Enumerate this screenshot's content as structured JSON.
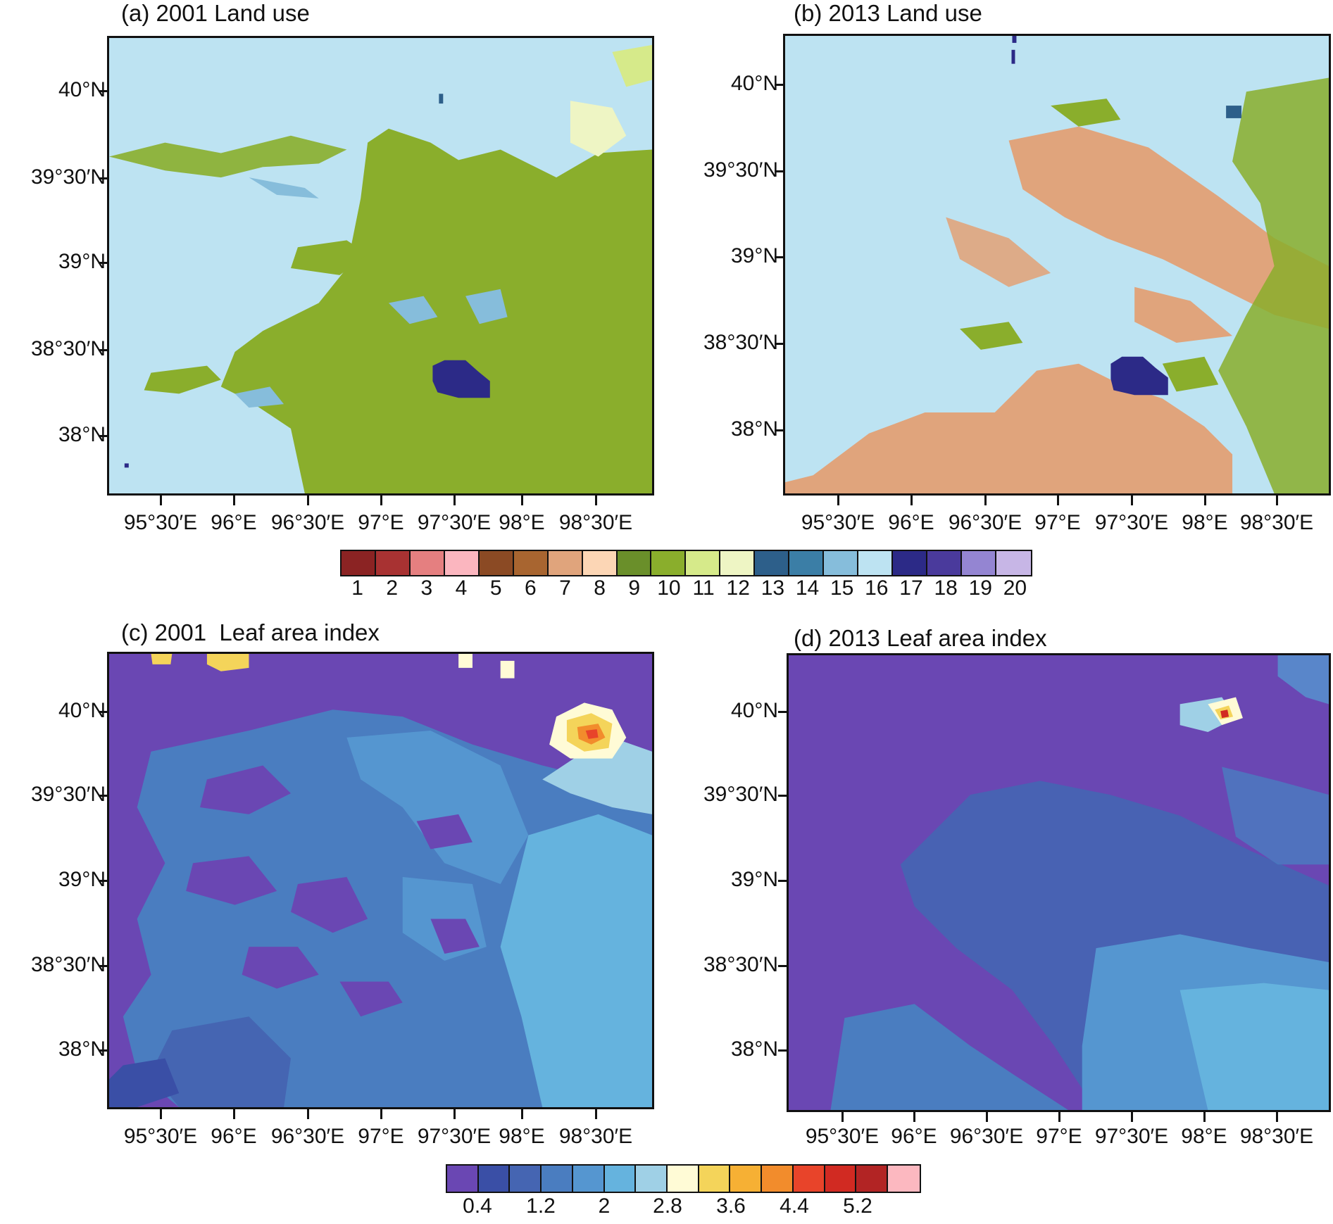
{
  "panels": [
    {
      "id": "a",
      "title": "(a) 2001 Land use"
    },
    {
      "id": "b",
      "title": "(b) 2013 Land use"
    },
    {
      "id": "c",
      "title": "(c) 2001  Leaf area index"
    },
    {
      "id": "d",
      "title": "(d) 2013 Leaf area index"
    }
  ],
  "lat_labels": [
    "40°N",
    "39°30′N",
    "39°N",
    "38°30′N",
    "38°N"
  ],
  "lon_labels": [
    "95°30′E",
    "96°E",
    "96°30′E",
    "97°E",
    "97°30′E",
    "98°E",
    "98°30′E"
  ],
  "landuse_colorbar": {
    "labels": [
      "1",
      "2",
      "3",
      "4",
      "5",
      "6",
      "7",
      "8",
      "9",
      "10",
      "11",
      "12",
      "13",
      "14",
      "15",
      "16",
      "17",
      "18",
      "19",
      "20"
    ],
    "colors": [
      "#8b2323",
      "#a83232",
      "#e57f80",
      "#fbb6bf",
      "#8b4a24",
      "#a86530",
      "#e0a47c",
      "#fcd6b5",
      "#6a8f2a",
      "#8aae2c",
      "#d6ea8a",
      "#eef5c4",
      "#2d5f8a",
      "#3b7ea6",
      "#86bddb",
      "#bde3f2",
      "#2c2a87",
      "#4a3a9c",
      "#9485d2",
      "#c7b6e6"
    ]
  },
  "lai_colorbar": {
    "labels": [
      "0.4",
      "1.2",
      "2",
      "2.8",
      "3.6",
      "4.4",
      "5.2"
    ],
    "colors": [
      "#6a47b3",
      "#3a4fa6",
      "#4565b2",
      "#4a7dc0",
      "#5596d0",
      "#65b3de",
      "#9fd0e6",
      "#fffbd6",
      "#f4d45a",
      "#f6b034",
      "#f28c2c",
      "#e8442a",
      "#d12a22",
      "#b22424",
      "#fcb8c0"
    ]
  },
  "map_colors": {
    "landuse_background": "#bde3f2",
    "cropland": "#8aae2c",
    "bare_soil": "#e0a47c",
    "lake": "#2c2a87",
    "wetland": "#86bddb",
    "lai_low": "#6a47b3",
    "lai_mid1": "#4565b2",
    "lai_mid2": "#4a7dc0",
    "lai_mid3": "#5596d0",
    "lai_mid4": "#65b3de",
    "lai_high": "#f4d45a"
  }
}
